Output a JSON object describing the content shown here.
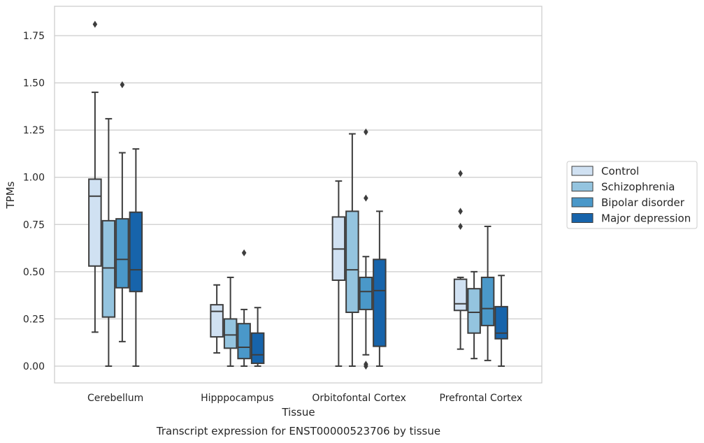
{
  "chart_data": {
    "type": "box",
    "title": "",
    "xlabel": "Tissue",
    "ylabel": "TPMs",
    "caption": "Transcript expression for ENST00000523706 by tissue",
    "ylim": [
      -0.09,
      1.9
    ],
    "yticks": [
      0.0,
      0.25,
      0.5,
      0.75,
      1.0,
      1.25,
      1.5,
      1.75
    ],
    "ytick_labels": [
      "0.00",
      "0.25",
      "0.50",
      "0.75",
      "1.00",
      "1.25",
      "1.50",
      "1.75"
    ],
    "grid": "horizontal",
    "legend_position": "right-center",
    "categories": [
      "Cerebellum",
      "Hipppocampus",
      "Orbitofontal Cortex",
      "Prefrontal Cortex"
    ],
    "series": [
      {
        "name": "Control",
        "color": "#d0e1f2",
        "boxes": [
          {
            "whislo": 0.18,
            "q1": 0.53,
            "med": 0.9,
            "q3": 0.99,
            "whishi": 1.45,
            "fliers": [
              1.81
            ]
          },
          {
            "whislo": 0.07,
            "q1": 0.155,
            "med": 0.29,
            "q3": 0.325,
            "whishi": 0.43,
            "fliers": []
          },
          {
            "whislo": 0.0,
            "q1": 0.455,
            "med": 0.62,
            "q3": 0.79,
            "whishi": 0.98,
            "fliers": []
          },
          {
            "whislo": 0.09,
            "q1": 0.295,
            "med": 0.33,
            "q3": 0.46,
            "whishi": 0.47,
            "fliers": [
              0.74,
              0.82,
              1.02
            ]
          }
        ]
      },
      {
        "name": "Schizophrenia",
        "color": "#94c4df",
        "boxes": [
          {
            "whislo": 0.0,
            "q1": 0.26,
            "med": 0.52,
            "q3": 0.77,
            "whishi": 1.31,
            "fliers": []
          },
          {
            "whislo": 0.0,
            "q1": 0.095,
            "med": 0.165,
            "q3": 0.25,
            "whishi": 0.47,
            "fliers": []
          },
          {
            "whislo": 0.0,
            "q1": 0.285,
            "med": 0.51,
            "q3": 0.82,
            "whishi": 1.23,
            "fliers": []
          },
          {
            "whislo": 0.04,
            "q1": 0.175,
            "med": 0.285,
            "q3": 0.41,
            "whishi": 0.5,
            "fliers": []
          }
        ]
      },
      {
        "name": "Bipolar disorder",
        "color": "#4a98c9",
        "boxes": [
          {
            "whislo": 0.13,
            "q1": 0.415,
            "med": 0.565,
            "q3": 0.78,
            "whishi": 1.13,
            "fliers": [
              1.49
            ]
          },
          {
            "whislo": 0.0,
            "q1": 0.04,
            "med": 0.1,
            "q3": 0.225,
            "whishi": 0.3,
            "fliers": [
              0.6
            ]
          },
          {
            "whislo": 0.06,
            "q1": 0.3,
            "med": 0.395,
            "q3": 0.47,
            "whishi": 0.58,
            "fliers": [
              0.0,
              0.01,
              0.89,
              1.24
            ]
          },
          {
            "whislo": 0.03,
            "q1": 0.215,
            "med": 0.305,
            "q3": 0.47,
            "whishi": 0.74,
            "fliers": []
          }
        ]
      },
      {
        "name": "Major depression",
        "color": "#1764ab",
        "boxes": [
          {
            "whislo": 0.0,
            "q1": 0.395,
            "med": 0.51,
            "q3": 0.815,
            "whishi": 1.15,
            "fliers": []
          },
          {
            "whislo": 0.0,
            "q1": 0.015,
            "med": 0.06,
            "q3": 0.175,
            "whishi": 0.31,
            "fliers": []
          },
          {
            "whislo": 0.0,
            "q1": 0.105,
            "med": 0.4,
            "q3": 0.565,
            "whishi": 0.82,
            "fliers": []
          },
          {
            "whislo": 0.0,
            "q1": 0.145,
            "med": 0.175,
            "q3": 0.315,
            "whishi": 0.48,
            "fliers": []
          }
        ]
      }
    ]
  }
}
